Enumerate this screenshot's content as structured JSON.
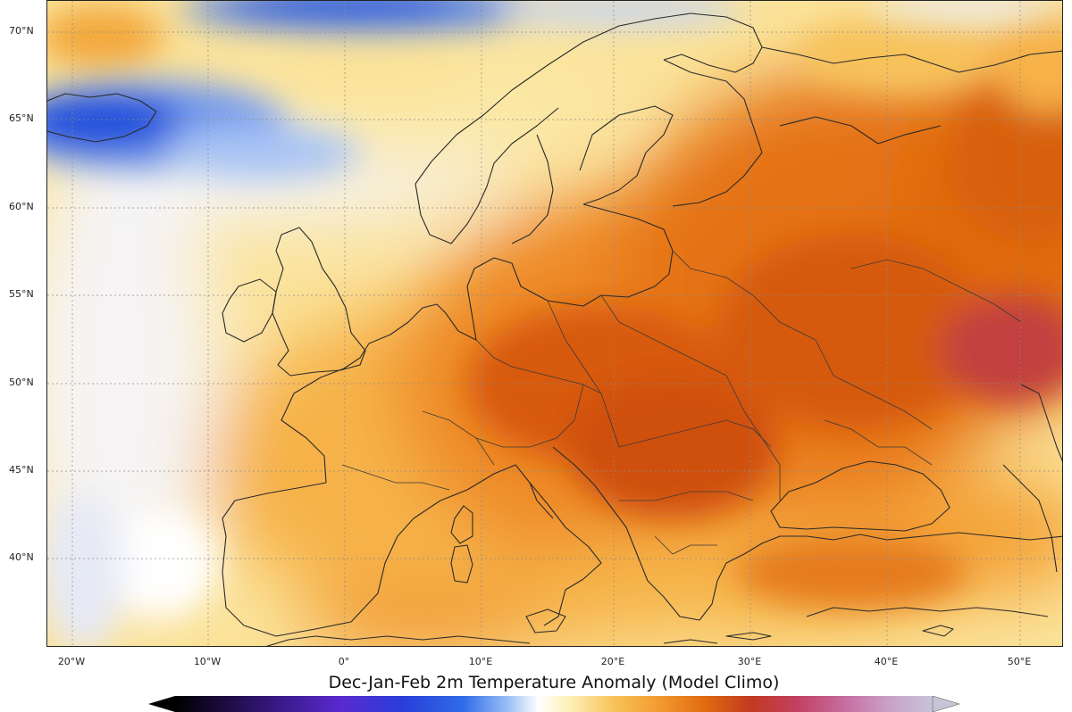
{
  "map": {
    "lat_labels": [
      "70°N",
      "65°N",
      "60°N",
      "55°N",
      "50°N",
      "45°N",
      "40°N"
    ],
    "lon_labels": [
      "20°W",
      "10°W",
      "0°",
      "10°E",
      "20°E",
      "30°E",
      "40°E",
      "50°E"
    ],
    "colorbar_title": "Dec-Jan-Feb 2m Temperature Anomaly (Model Climo)",
    "palette": {
      "cold_deep": "#0b3fd8",
      "cold": "#4a7be8",
      "cool": "#a9c4f4",
      "neutral": "#f4f4f8",
      "light_warm": "#fbe8a6",
      "warm": "#f8c25a",
      "warmer": "#f29a2e",
      "hot": "#e06a10",
      "hotter": "#c94a08",
      "extreme": "#c24040"
    }
  }
}
